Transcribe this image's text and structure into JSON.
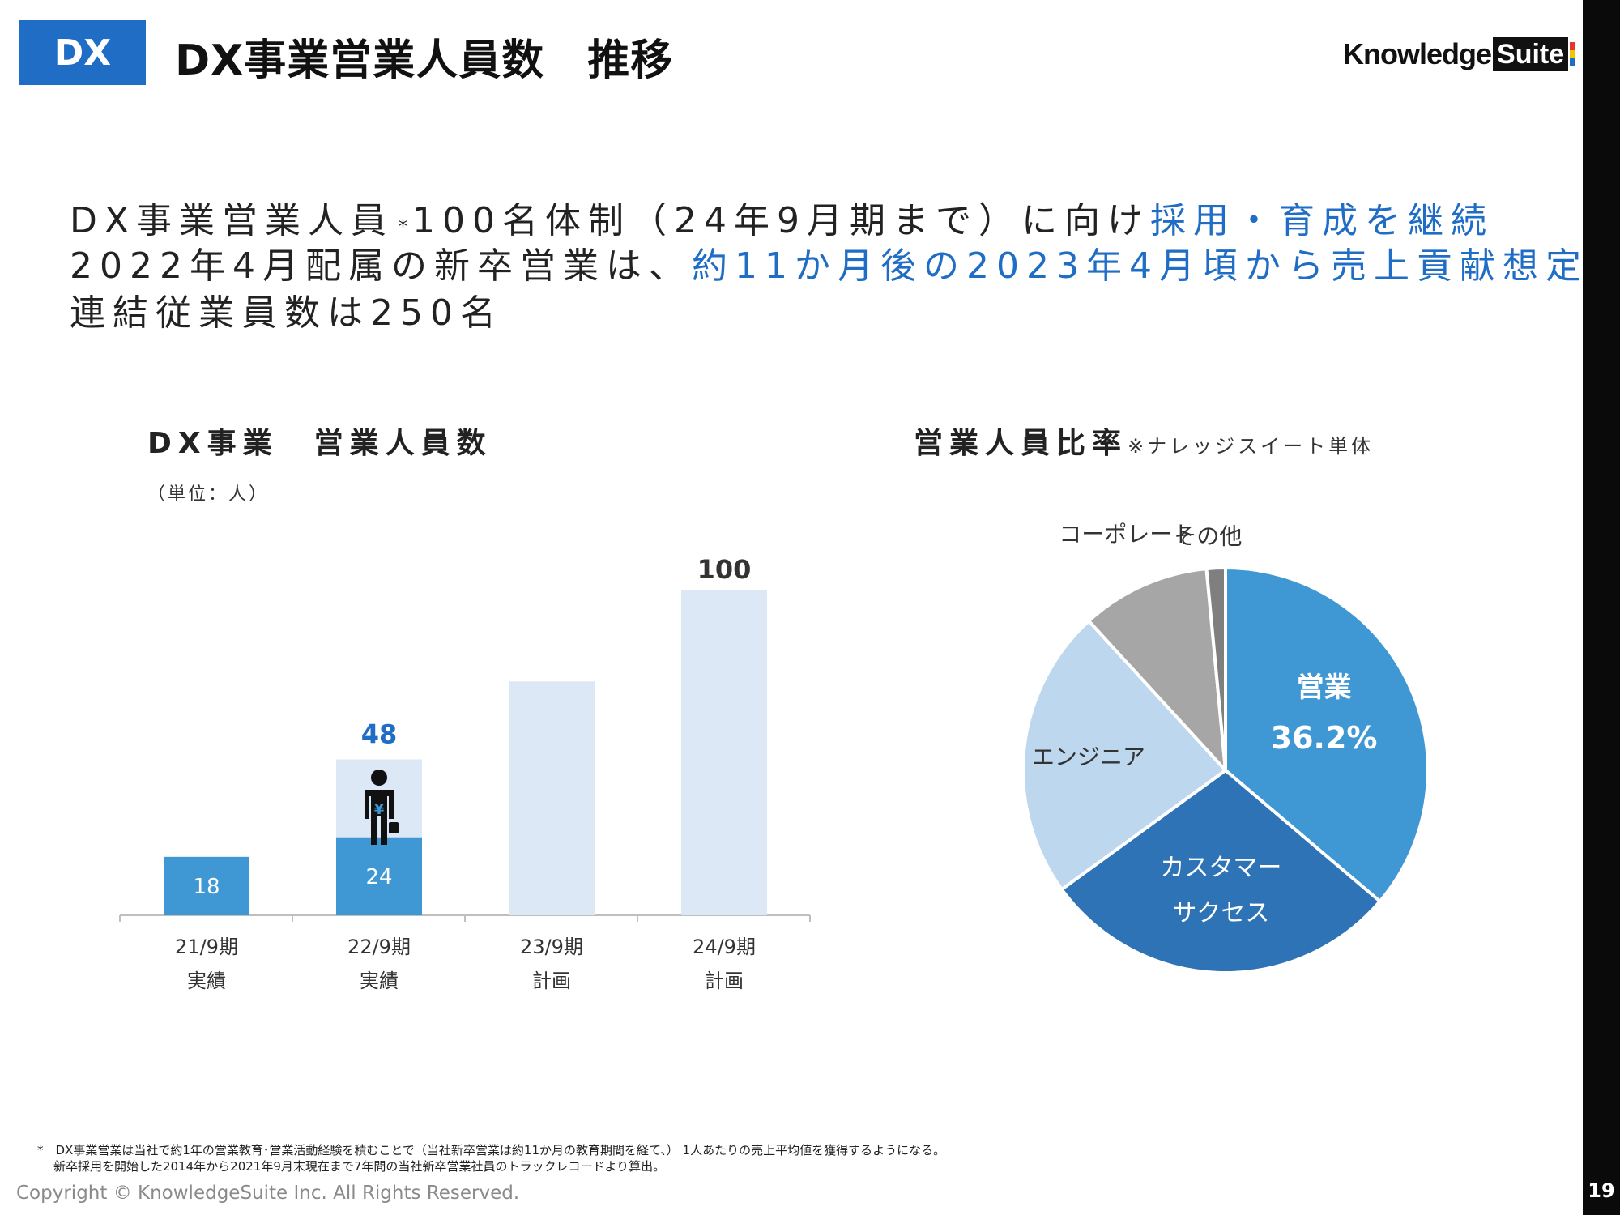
{
  "header": {
    "badge": "DX",
    "title": "DX事業営業人員数　推移",
    "logo_word": "Knowledge",
    "logo_suite": "Suite",
    "logo_bar_colors": [
      "#e8352b",
      "#f5c400",
      "#1f6dc4"
    ]
  },
  "summary": {
    "line1_black": "DX事業営業人員",
    "line1_asterisk": "*",
    "line1_black2": "100名体制（24年9月期まで）に向け",
    "line1_blue": "採用・育成を継続",
    "line2_black": "2022年4月配属の新卒営業は、",
    "line2_blue": "約11か月後の2023年4月頃から売上貢献想定",
    "line3_black": "連結従業員数は250名"
  },
  "bar_chart": {
    "title": "DX事業　営業人員数",
    "unit": "（単位：人）",
    "person_icon": "person-yen-briefcase-icon"
  },
  "pie_chart": {
    "title": "営業人員比率",
    "note": "※ナレッジスイート単体"
  },
  "chart_data": [
    {
      "type": "bar",
      "categories": [
        "21/9期",
        "22/9期",
        "23/9期",
        "24/9期"
      ],
      "category_sublabels": [
        "実績",
        "実績",
        "計画",
        "計画"
      ],
      "series": [
        {
          "values": [
            18,
            24,
            null,
            null
          ],
          "color": "#3f97d4"
        },
        {
          "values": [
            null,
            48,
            72,
            100
          ],
          "color": "#dce8f5"
        }
      ],
      "data_labels": [
        "18",
        "24",
        "48",
        "100"
      ],
      "ylim": [
        0,
        100
      ],
      "grid": false
    },
    {
      "type": "pie",
      "labels": [
        "営業",
        "カスタマーサクセス",
        "エンジニア",
        "コーポレート",
        "その他"
      ],
      "label_lines": [
        [
          "営業",
          "36.2%"
        ],
        [
          "カスタマー",
          "サクセス"
        ],
        [
          "エンジニア"
        ],
        [
          "コーポレート"
        ],
        [
          "その他"
        ]
      ],
      "values": [
        36.2,
        28.8,
        23.2,
        10.3,
        1.5
      ],
      "shown_percent": "36.2%",
      "colors": [
        "#3f97d4",
        "#2e73b5",
        "#bdd7ee",
        "#a6a6a6",
        "#7f7f7f"
      ]
    }
  ],
  "footer": {
    "footnote_line1": "*　DX事業営業は当社で約1年の営業教育･営業活動経験を積むことで（当社新卒営業は約11か月の教育期間を経て、） 1人あたりの売上平均値を獲得するようになる。",
    "footnote_line2": "新卒採用を開始した2014年から2021年9月末現在まで7年間の当社新卒営業社員のトラックレコードより算出。",
    "copyright": "Copyright © KnowledgeSuite Inc. All Rights Reserved.",
    "page_number": "19"
  }
}
